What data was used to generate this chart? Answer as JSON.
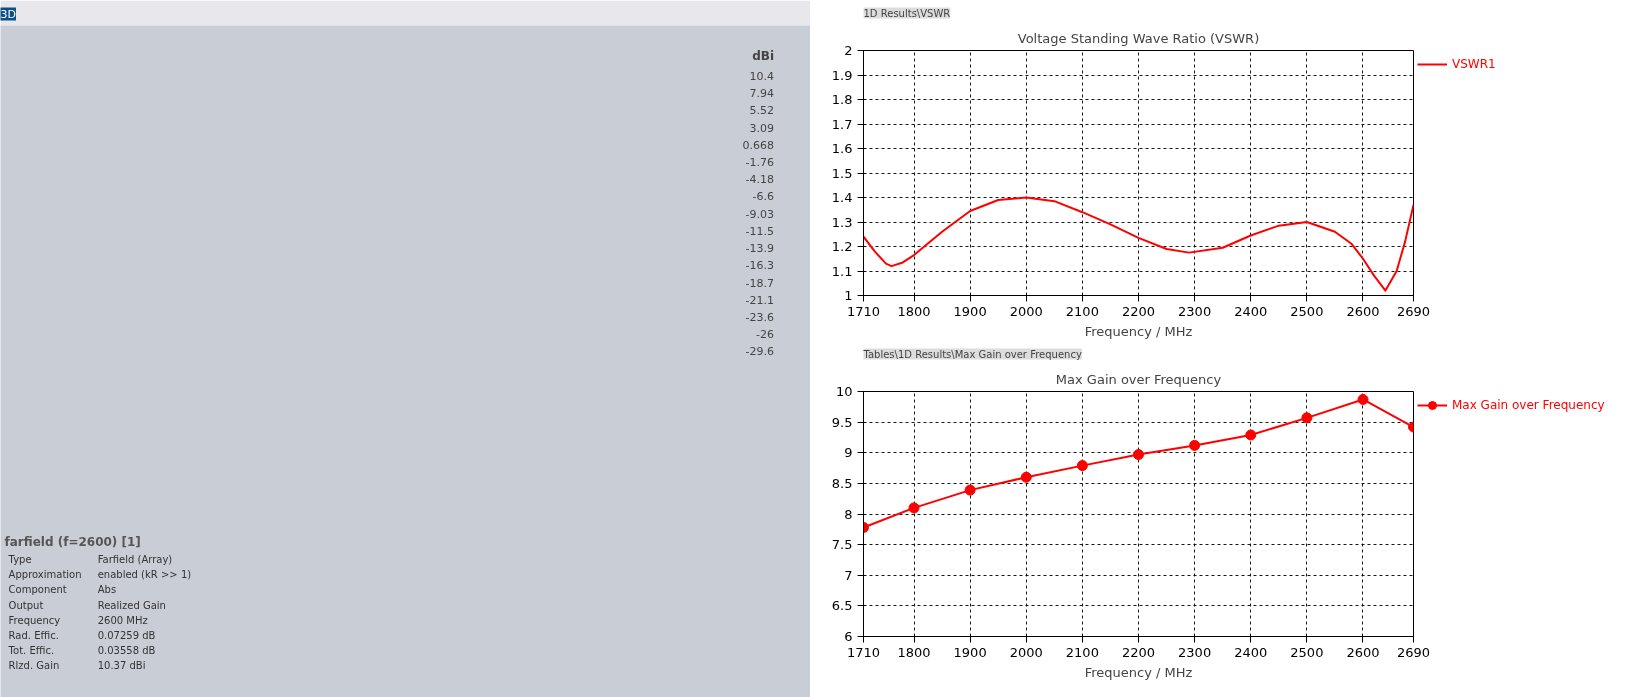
{
  "chart_data": [
    {
      "type": "other",
      "title": "3D",
      "annotations": [
        "farfield (f=2600) [1]",
        "Type",
        "Farfield (Array)",
        "Approximation",
        "enabled (kR >> 1)",
        "Component",
        "Abs",
        "Output",
        "Realized Gain",
        "Frequency",
        "2600 MHz",
        "Rad. Effic.",
        "0.07259 dB",
        "Tot. Effic.",
        "0.03558 dB",
        "Rlzd. Gain",
        "10.37 dBi"
      ]
    },
    {
      "type": "other",
      "clabel": "dBi",
      "annotations": [
        "10.4",
        "7.94",
        "5.52",
        "3.09",
        "0.668",
        "-1.76",
        "-4.18",
        "-6.6",
        "-9.03",
        "-11.5",
        "-13.9",
        "-16.3",
        "-18.7",
        "-21.1",
        "-23.6",
        "-26",
        "-29.6"
      ]
    },
    {
      "type": "line",
      "subtitle": "1D Results\\VSWR",
      "title": "Voltage Standing Wave Ratio (VSWR)",
      "xlabel": "Frequency / MHz",
      "x": [
        1710,
        1730,
        1750,
        1760,
        1780,
        1800,
        1850,
        1900,
        1950,
        2000,
        2050,
        2100,
        2150,
        2200,
        2250,
        2290,
        2350,
        2400,
        2450,
        2500,
        2550,
        2580,
        2600,
        2620,
        2640,
        2660,
        2675,
        2690
      ],
      "series": [
        {
          "name": "VSWR1",
          "color": "#ff0000",
          "values": [
            1.24,
            1.18,
            1.13,
            1.12,
            1.135,
            1.165,
            1.26,
            1.345,
            1.39,
            1.4,
            1.385,
            1.34,
            1.29,
            1.235,
            1.19,
            1.175,
            1.195,
            1.245,
            1.285,
            1.3,
            1.26,
            1.21,
            1.15,
            1.08,
            1.02,
            1.1,
            1.22,
            1.37
          ]
        }
      ],
      "xlim": [
        1710,
        2690
      ],
      "xticks": [
        1710,
        1800,
        1900,
        2000,
        2100,
        2200,
        2300,
        2400,
        2500,
        2600,
        2690
      ],
      "ylim": [
        1,
        2
      ],
      "yticks": [
        1,
        1.1,
        1.2,
        1.3,
        1.4,
        1.5,
        1.6,
        1.7,
        1.8,
        1.9,
        2
      ],
      "grid": true,
      "legend": "top right",
      "marker": "none"
    },
    {
      "type": "line",
      "subtitle": "Tables\\1D Results\\Max Gain over Frequency",
      "title": "Max Gain over Frequency",
      "xlabel": "Frequency / MHz",
      "x": [
        1710,
        1800,
        1900,
        2000,
        2100,
        2200,
        2300,
        2400,
        2500,
        2600,
        2690
      ],
      "series": [
        {
          "name": "Max Gain over Frequency",
          "color": "#ff0000",
          "values": [
            7.78,
            8.1,
            8.39,
            8.6,
            8.79,
            8.97,
            9.12,
            9.29,
            9.57,
            9.87,
            9.42
          ]
        }
      ],
      "xlim": [
        1710,
        2690
      ],
      "xticks": [
        1710,
        1800,
        1900,
        2000,
        2100,
        2200,
        2300,
        2400,
        2500,
        2600,
        2690
      ],
      "ylim": [
        6,
        10
      ],
      "yticks": [
        6,
        6.5,
        7,
        7.5,
        8,
        8.5,
        9,
        9.5,
        10
      ],
      "grid": true,
      "legend": "top right",
      "marker": "circle"
    }
  ]
}
